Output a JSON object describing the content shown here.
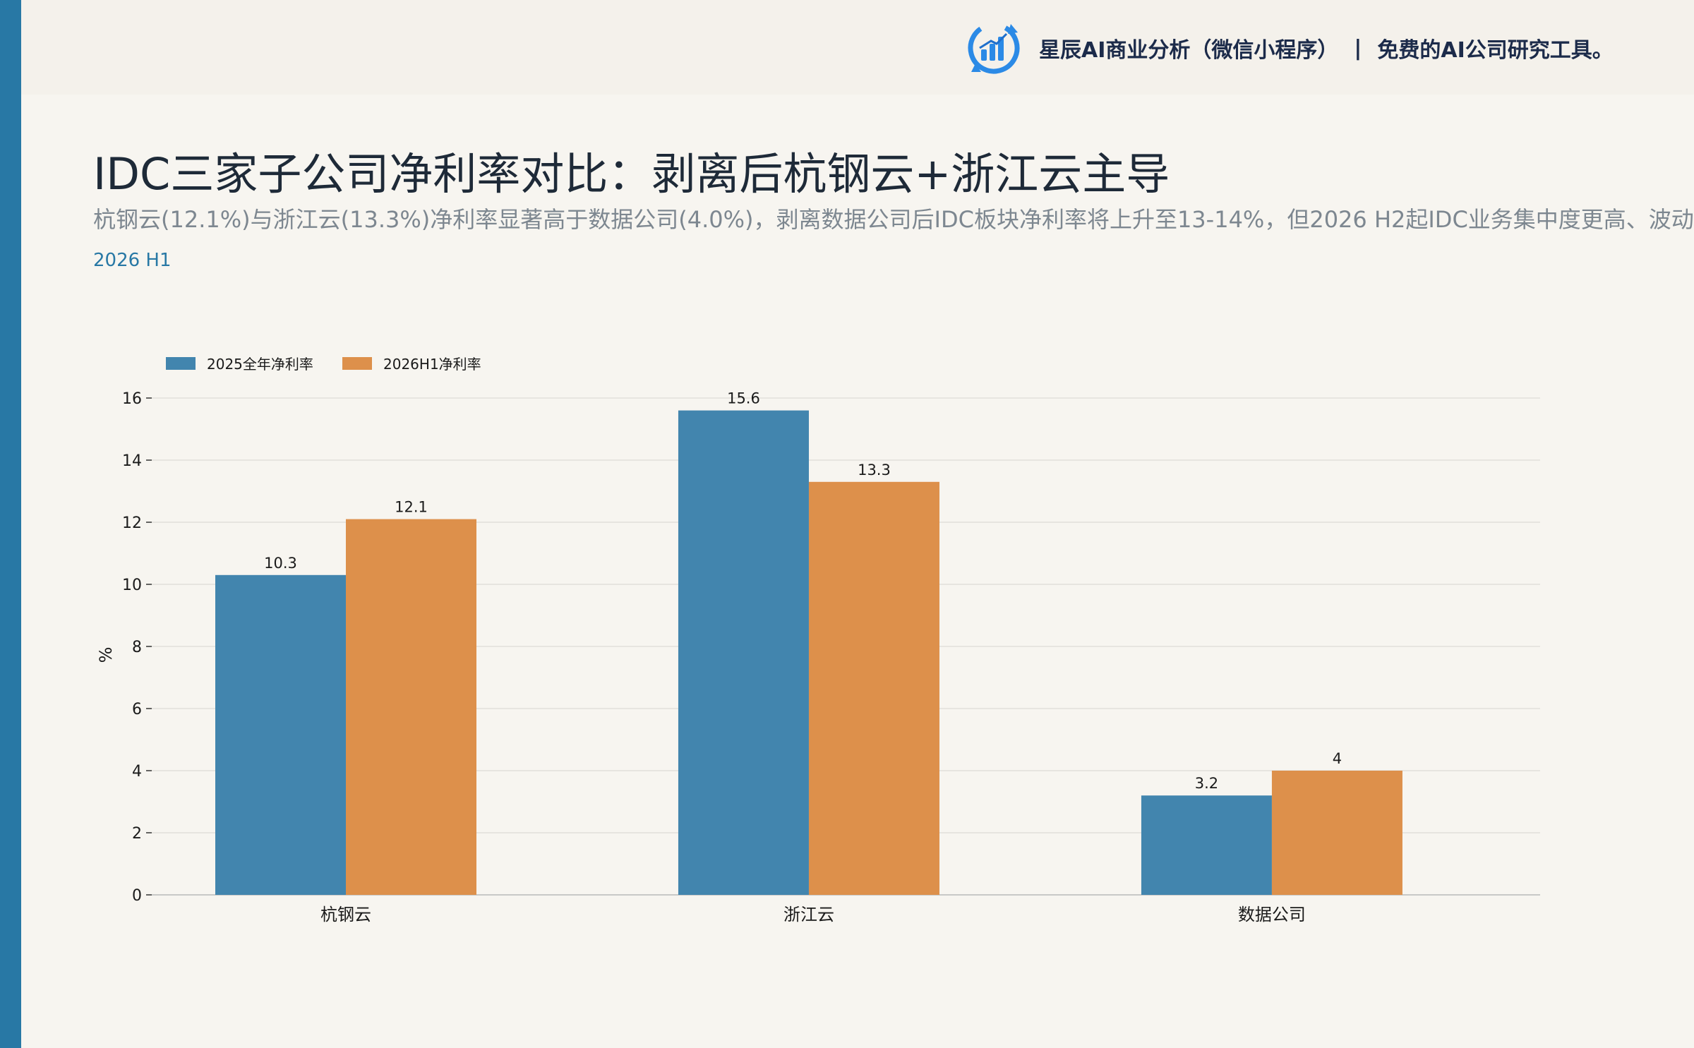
{
  "brand": {
    "logo_icon": "bar-chart-cycle-icon",
    "name": "星辰AI商业分析（微信小程序）",
    "separator": "|",
    "tagline": "免费的AI公司研究工具。"
  },
  "header": {
    "title": "IDC三家子公司净利率对比：剥离后杭钢云+浙江云主导",
    "subtitle": "杭钢云(12.1%)与浙江云(13.3%)净利率显著高于数据公司(4.0%)，剥离数据公司后IDC板块净利率将上升至13-14%，但2026 H2起IDC业务集中度更高、波动",
    "period": "2026 H1"
  },
  "colors": {
    "accent": "#2878a5",
    "series_2025": "#4285ae",
    "series_2026h1": "#dd904b"
  },
  "chart_data": {
    "type": "bar",
    "categories": [
      "杭钢云",
      "浙江云",
      "数据公司"
    ],
    "series": [
      {
        "name": "2025全年净利率",
        "values": [
          10.3,
          15.6,
          3.2
        ],
        "labels": [
          "10.3",
          "15.6",
          "3.2"
        ]
      },
      {
        "name": "2026H1净利率",
        "values": [
          12.1,
          13.3,
          4.0
        ],
        "labels": [
          "12.1",
          "13.3",
          "4"
        ]
      }
    ],
    "ylabel": "%",
    "ylim": [
      0,
      16
    ],
    "yticks": [
      0,
      2,
      4,
      6,
      8,
      10,
      12,
      14,
      16
    ],
    "grid": true,
    "legend": "top-left"
  }
}
